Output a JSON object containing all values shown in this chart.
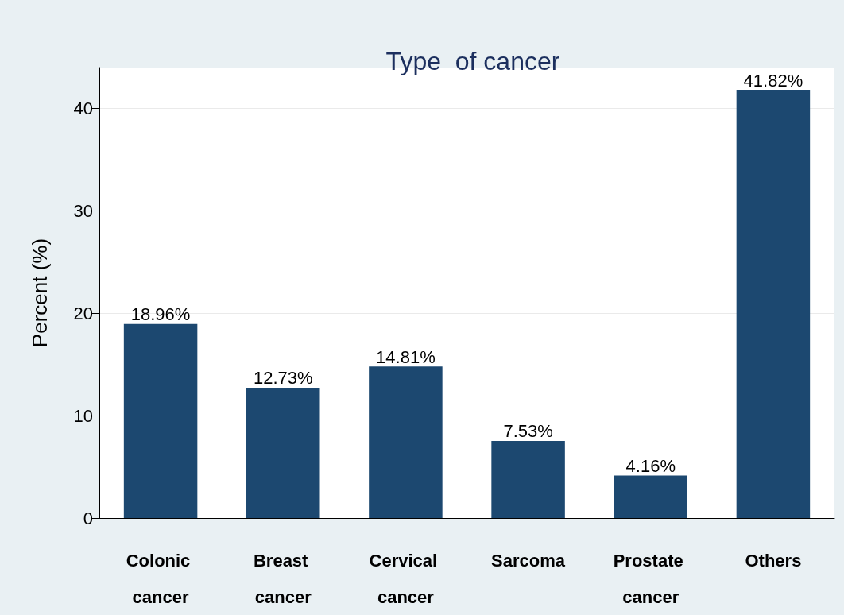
{
  "chart_data": {
    "type": "bar",
    "title": "Type  of cancer",
    "ylabel": "Percent (%)",
    "categories": [
      "Colonic cancer",
      "Breast cancer",
      "Cervical cancer",
      "Sarcoma",
      "Prostate cancer",
      "Others"
    ],
    "values": [
      18.96,
      12.73,
      14.81,
      7.53,
      4.16,
      41.82
    ],
    "value_labels": [
      "18.96%",
      "12.73%",
      "14.81%",
      "7.53%",
      "4.16%",
      "41.82%"
    ],
    "color": "#1c4870",
    "ylim": [
      0,
      44
    ],
    "yticks": [
      0,
      10,
      20,
      30,
      40
    ],
    "grid": "y"
  }
}
